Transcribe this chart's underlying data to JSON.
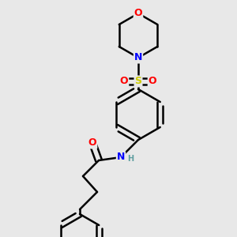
{
  "background_color": "#e8e8e8",
  "atom_colors": {
    "O": "#ff0000",
    "N": "#0000ff",
    "S": "#cccc00",
    "C": "#000000",
    "H": "#5f9ea0"
  },
  "bond_color": "#000000",
  "bond_width": 1.8,
  "fig_w": 3.0,
  "fig_h": 3.0,
  "dpi": 100
}
